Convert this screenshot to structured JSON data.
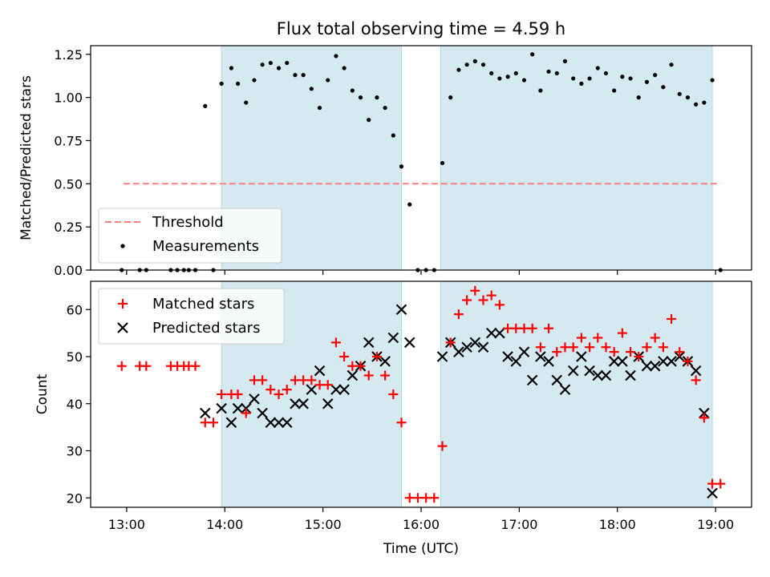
{
  "chart_data": [
    {
      "type": "scatter",
      "title": "Flux total observing time = 4.59 h",
      "xlabel": "",
      "ylabel": "Matched/Predicted stars",
      "ylim": [
        0,
        1.3
      ],
      "xlim": [
        "12:38",
        "19:22"
      ],
      "yticks": [
        "0.00",
        "0.25",
        "0.50",
        "0.75",
        "1.00",
        "1.25"
      ],
      "shaded_intervals": [
        [
          "13:58",
          "15:48"
        ],
        [
          "16:12",
          "18:58"
        ]
      ],
      "shade_color": "#d4eaf0",
      "threshold": {
        "name": "Threshold",
        "value": 0.5,
        "x_range": [
          "12:58",
          "19:03"
        ],
        "color": "#ff7f7f"
      },
      "legend": {
        "placement": "lower-left",
        "entries": [
          "Threshold",
          "Measurements"
        ]
      },
      "series": [
        {
          "name": "Measurements",
          "color": "#000000",
          "marker": "dot",
          "points": [
            [
              "12:57",
              0.0
            ],
            [
              "13:08",
              0.0
            ],
            [
              "13:12",
              0.0
            ],
            [
              "13:27",
              0.0
            ],
            [
              "13:31",
              0.0
            ],
            [
              "13:35",
              0.0
            ],
            [
              "13:38",
              0.0
            ],
            [
              "13:42",
              0.0
            ],
            [
              "13:53",
              0.0
            ],
            [
              "13:48",
              0.95
            ],
            [
              "13:58",
              1.08
            ],
            [
              "14:04",
              1.17
            ],
            [
              "14:08",
              1.08
            ],
            [
              "14:13",
              0.97
            ],
            [
              "14:18",
              1.1
            ],
            [
              "14:23",
              1.19
            ],
            [
              "14:28",
              1.2
            ],
            [
              "14:33",
              1.17
            ],
            [
              "14:38",
              1.2
            ],
            [
              "14:43",
              1.13
            ],
            [
              "14:48",
              1.13
            ],
            [
              "14:53",
              1.05
            ],
            [
              "14:58",
              0.94
            ],
            [
              "15:03",
              1.1
            ],
            [
              "15:08",
              1.24
            ],
            [
              "15:13",
              1.17
            ],
            [
              "15:18",
              1.04
            ],
            [
              "15:23",
              1.0
            ],
            [
              "15:28",
              0.87
            ],
            [
              "15:33",
              1.0
            ],
            [
              "15:38",
              0.94
            ],
            [
              "15:43",
              0.78
            ],
            [
              "15:48",
              0.6
            ],
            [
              "15:53",
              0.38
            ],
            [
              "15:58",
              0.0
            ],
            [
              "16:03",
              0.0
            ],
            [
              "16:08",
              0.0
            ],
            [
              "16:13",
              0.62
            ],
            [
              "16:18",
              1.0
            ],
            [
              "16:23",
              1.16
            ],
            [
              "16:28",
              1.19
            ],
            [
              "16:33",
              1.21
            ],
            [
              "16:38",
              1.19
            ],
            [
              "16:43",
              1.14
            ],
            [
              "16:48",
              1.11
            ],
            [
              "16:53",
              1.12
            ],
            [
              "16:58",
              1.14
            ],
            [
              "17:03",
              1.1
            ],
            [
              "17:08",
              1.25
            ],
            [
              "17:13",
              1.04
            ],
            [
              "17:18",
              1.15
            ],
            [
              "17:23",
              1.14
            ],
            [
              "17:28",
              1.21
            ],
            [
              "17:33",
              1.11
            ],
            [
              "17:38",
              1.08
            ],
            [
              "17:43",
              1.11
            ],
            [
              "17:48",
              1.17
            ],
            [
              "17:53",
              1.14
            ],
            [
              "17:58",
              1.04
            ],
            [
              "18:03",
              1.12
            ],
            [
              "18:08",
              1.11
            ],
            [
              "18:13",
              1.0
            ],
            [
              "18:18",
              1.09
            ],
            [
              "18:23",
              1.13
            ],
            [
              "18:28",
              1.06
            ],
            [
              "18:33",
              1.19
            ],
            [
              "18:38",
              1.02
            ],
            [
              "18:43",
              1.0
            ],
            [
              "18:48",
              0.96
            ],
            [
              "18:53",
              0.97
            ],
            [
              "18:58",
              1.1
            ],
            [
              "19:03",
              0.0
            ]
          ]
        }
      ]
    },
    {
      "type": "scatter",
      "title": "",
      "xlabel": "Time (UTC)",
      "ylabel": "Count",
      "ylim": [
        18,
        66
      ],
      "xlim": [
        "12:38",
        "19:22"
      ],
      "yticks": [
        "20",
        "30",
        "40",
        "50",
        "60"
      ],
      "xticks": [
        "13:00",
        "14:00",
        "15:00",
        "16:00",
        "17:00",
        "18:00",
        "19:00"
      ],
      "shaded_intervals": [
        [
          "13:58",
          "15:48"
        ],
        [
          "16:12",
          "18:58"
        ]
      ],
      "shade_color": "#d4eaf0",
      "legend": {
        "placement": "top-left",
        "entries": [
          "Matched stars",
          "Predicted stars"
        ]
      },
      "series": [
        {
          "name": "Matched stars",
          "color": "#ff0000",
          "marker": "plus",
          "points": [
            [
              "12:57",
              48
            ],
            [
              "13:08",
              48
            ],
            [
              "13:12",
              48
            ],
            [
              "13:27",
              48
            ],
            [
              "13:31",
              48
            ],
            [
              "13:35",
              48
            ],
            [
              "13:38",
              48
            ],
            [
              "13:42",
              48
            ],
            [
              "13:48",
              36
            ],
            [
              "13:53",
              36
            ],
            [
              "13:58",
              42
            ],
            [
              "14:04",
              42
            ],
            [
              "14:08",
              42
            ],
            [
              "14:13",
              38
            ],
            [
              "14:18",
              45
            ],
            [
              "14:23",
              45
            ],
            [
              "14:28",
              43
            ],
            [
              "14:33",
              42
            ],
            [
              "14:38",
              43
            ],
            [
              "14:43",
              45
            ],
            [
              "14:48",
              45
            ],
            [
              "14:53",
              45
            ],
            [
              "14:58",
              44
            ],
            [
              "15:03",
              44
            ],
            [
              "15:08",
              53
            ],
            [
              "15:13",
              50
            ],
            [
              "15:18",
              48
            ],
            [
              "15:23",
              48
            ],
            [
              "15:28",
              46
            ],
            [
              "15:33",
              50
            ],
            [
              "15:38",
              46
            ],
            [
              "15:43",
              42
            ],
            [
              "15:48",
              36
            ],
            [
              "15:53",
              20
            ],
            [
              "15:58",
              20
            ],
            [
              "16:03",
              20
            ],
            [
              "16:08",
              20
            ],
            [
              "16:13",
              31
            ],
            [
              "16:18",
              53
            ],
            [
              "16:23",
              59
            ],
            [
              "16:28",
              62
            ],
            [
              "16:33",
              64
            ],
            [
              "16:38",
              62
            ],
            [
              "16:43",
              63
            ],
            [
              "16:48",
              61
            ],
            [
              "16:53",
              56
            ],
            [
              "16:58",
              56
            ],
            [
              "17:03",
              56
            ],
            [
              "17:08",
              56
            ],
            [
              "17:13",
              52
            ],
            [
              "17:18",
              56
            ],
            [
              "17:23",
              51
            ],
            [
              "17:28",
              52
            ],
            [
              "17:33",
              52
            ],
            [
              "17:38",
              54
            ],
            [
              "17:43",
              52
            ],
            [
              "17:48",
              54
            ],
            [
              "17:53",
              52
            ],
            [
              "17:58",
              51
            ],
            [
              "18:03",
              55
            ],
            [
              "18:08",
              51
            ],
            [
              "18:13",
              50
            ],
            [
              "18:18",
              52
            ],
            [
              "18:23",
              54
            ],
            [
              "18:28",
              52
            ],
            [
              "18:33",
              58
            ],
            [
              "18:38",
              51
            ],
            [
              "18:43",
              49
            ],
            [
              "18:48",
              45
            ],
            [
              "18:53",
              37
            ],
            [
              "18:58",
              23
            ],
            [
              "19:03",
              23
            ]
          ]
        },
        {
          "name": "Predicted stars",
          "color": "#000000",
          "marker": "x",
          "points": [
            [
              "13:48",
              38
            ],
            [
              "13:58",
              39
            ],
            [
              "14:04",
              36
            ],
            [
              "14:08",
              39
            ],
            [
              "14:13",
              39
            ],
            [
              "14:18",
              41
            ],
            [
              "14:23",
              38
            ],
            [
              "14:28",
              36
            ],
            [
              "14:33",
              36
            ],
            [
              "14:38",
              36
            ],
            [
              "14:43",
              40
            ],
            [
              "14:48",
              40
            ],
            [
              "14:53",
              43
            ],
            [
              "14:58",
              47
            ],
            [
              "15:03",
              40
            ],
            [
              "15:08",
              43
            ],
            [
              "15:13",
              43
            ],
            [
              "15:18",
              46
            ],
            [
              "15:23",
              48
            ],
            [
              "15:28",
              53
            ],
            [
              "15:33",
              50
            ],
            [
              "15:38",
              49
            ],
            [
              "15:43",
              54
            ],
            [
              "15:48",
              60
            ],
            [
              "15:53",
              53
            ],
            [
              "16:13",
              50
            ],
            [
              "16:18",
              53
            ],
            [
              "16:23",
              51
            ],
            [
              "16:28",
              52
            ],
            [
              "16:33",
              53
            ],
            [
              "16:38",
              52
            ],
            [
              "16:43",
              55
            ],
            [
              "16:48",
              55
            ],
            [
              "16:53",
              50
            ],
            [
              "16:58",
              49
            ],
            [
              "17:03",
              51
            ],
            [
              "17:08",
              45
            ],
            [
              "17:13",
              50
            ],
            [
              "17:18",
              49
            ],
            [
              "17:23",
              45
            ],
            [
              "17:28",
              43
            ],
            [
              "17:33",
              47
            ],
            [
              "17:38",
              50
            ],
            [
              "17:43",
              47
            ],
            [
              "17:48",
              46
            ],
            [
              "17:53",
              46
            ],
            [
              "17:58",
              49
            ],
            [
              "18:03",
              49
            ],
            [
              "18:08",
              46
            ],
            [
              "18:13",
              50
            ],
            [
              "18:18",
              48
            ],
            [
              "18:23",
              48
            ],
            [
              "18:28",
              49
            ],
            [
              "18:33",
              49
            ],
            [
              "18:38",
              50
            ],
            [
              "18:43",
              49
            ],
            [
              "18:48",
              47
            ],
            [
              "18:53",
              38
            ],
            [
              "18:58",
              21
            ]
          ]
        }
      ]
    }
  ]
}
